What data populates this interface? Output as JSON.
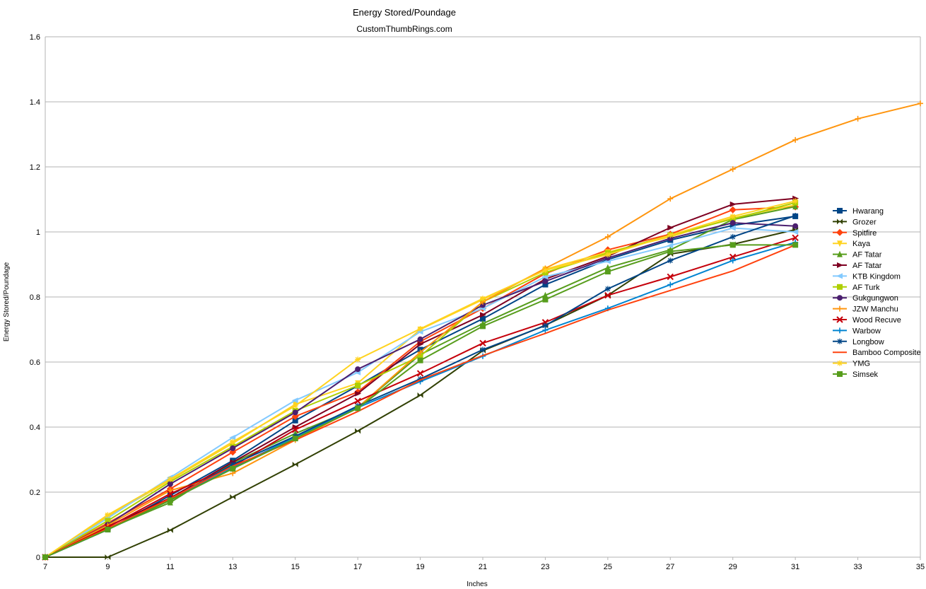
{
  "chart_data": {
    "type": "line",
    "title": "Energy Stored/Poundage",
    "subtitle": "CustomThumbRings.com",
    "xlabel": "Inches",
    "ylabel": "Energy Stored/Poundage",
    "x_ticks": [
      7,
      9,
      11,
      13,
      15,
      17,
      19,
      21,
      23,
      25,
      27,
      29,
      31,
      33,
      35
    ],
    "y_ticks": [
      "0",
      "0.2",
      "0.4",
      "0.6",
      "0.8",
      "1",
      "1.2",
      "1.4",
      "1.6"
    ],
    "xlim": [
      7,
      35
    ],
    "ylim": [
      0,
      1.6
    ],
    "grid": "horizontal",
    "legend_position": "right",
    "series": [
      {
        "name": "Hwarang",
        "color": "#004586",
        "marker": "square",
        "x": [
          7,
          9,
          11,
          13,
          15,
          17,
          19,
          21,
          23,
          25,
          27,
          29,
          31
        ],
        "y": [
          0,
          0.085,
          0.19,
          0.297,
          0.42,
          0.527,
          0.638,
          0.733,
          0.838,
          0.915,
          0.975,
          1.02,
          1.048
        ]
      },
      {
        "name": "Grozer",
        "color": "#314004",
        "marker": "bowtie",
        "x": [
          7,
          9,
          11,
          13,
          15,
          17,
          19,
          21,
          23,
          25,
          27,
          29,
          31
        ],
        "y": [
          0,
          0,
          0.083,
          0.185,
          0.285,
          0.388,
          0.498,
          0.635,
          0.713,
          0.805,
          0.932,
          0.962,
          1.007
        ]
      },
      {
        "name": "Spitfire",
        "color": "#ff420e",
        "marker": "diamond",
        "x": [
          7,
          9,
          11,
          13,
          15,
          17,
          19,
          21,
          23,
          25,
          27,
          29,
          31
        ],
        "y": [
          0,
          0.105,
          0.21,
          0.323,
          0.433,
          0.508,
          0.663,
          0.765,
          0.872,
          0.945,
          0.993,
          1.068,
          1.077
        ]
      },
      {
        "name": "Kaya",
        "color": "#ffd320",
        "marker": "triangle-down",
        "x": [
          7,
          9,
          11,
          13,
          15,
          17,
          19,
          21,
          23,
          25,
          27,
          29,
          31
        ],
        "y": [
          0,
          0.125,
          0.237,
          0.35,
          0.47,
          0.535,
          0.7,
          0.792,
          0.885,
          0.938,
          0.985,
          1.043,
          1.083
        ]
      },
      {
        "name": "AF Tatar",
        "color": "#579d1c",
        "marker": "triangle-up",
        "x": [
          7,
          9,
          11,
          13,
          15,
          17,
          19,
          21,
          23,
          25,
          27,
          29,
          31
        ],
        "y": [
          0,
          0.087,
          0.168,
          0.29,
          0.38,
          0.46,
          0.623,
          0.718,
          0.805,
          0.89,
          0.945,
          1.038,
          1.078
        ]
      },
      {
        "name": "AF Tatar",
        "color": "#7e0021",
        "marker": "triangle-right",
        "x": [
          7,
          9,
          11,
          13,
          15,
          17,
          19,
          21,
          23,
          25,
          27,
          29,
          31
        ],
        "y": [
          0,
          0.095,
          0.182,
          0.292,
          0.4,
          0.503,
          0.655,
          0.745,
          0.855,
          0.925,
          1.013,
          1.085,
          1.103
        ]
      },
      {
        "name": "KTB Kingdom",
        "color": "#83caff",
        "marker": "triangle-left",
        "x": [
          7,
          9,
          11,
          13,
          15,
          17,
          19,
          21,
          23,
          25,
          27,
          29,
          31
        ],
        "y": [
          0,
          0.12,
          0.245,
          0.368,
          0.482,
          0.568,
          0.693,
          0.765,
          0.862,
          0.91,
          0.958,
          1.012,
          1.0
        ]
      },
      {
        "name": "AF Turk",
        "color": "#aecf00",
        "marker": "square",
        "x": [
          7,
          9,
          11,
          13,
          15,
          17,
          19,
          21,
          23,
          25,
          27,
          29,
          31
        ],
        "y": [
          0,
          0.112,
          0.232,
          0.34,
          0.45,
          0.528,
          0.618,
          0.785,
          0.875,
          0.935,
          0.99,
          1.04,
          1.09
        ]
      },
      {
        "name": "Gukgungwon",
        "color": "#4b1f6f",
        "marker": "circle",
        "x": [
          7,
          9,
          11,
          13,
          15,
          17,
          19,
          21,
          23,
          25,
          27,
          29,
          31
        ],
        "y": [
          0,
          0.1,
          0.225,
          0.335,
          0.445,
          0.578,
          0.67,
          0.775,
          0.848,
          0.92,
          0.98,
          1.028,
          1.018
        ]
      },
      {
        "name": "JZW Manchu",
        "color": "#ff950e",
        "marker": "plus",
        "x": [
          7,
          9,
          11,
          13,
          15,
          17,
          19,
          21,
          23,
          25,
          27,
          29,
          31,
          33,
          35
        ],
        "y": [
          0,
          0.098,
          0.205,
          0.258,
          0.36,
          0.46,
          0.63,
          0.785,
          0.888,
          0.985,
          1.102,
          1.193,
          1.283,
          1.348,
          1.395
        ]
      },
      {
        "name": "Wood Recuve",
        "color": "#c5000b",
        "marker": "x",
        "x": [
          7,
          9,
          11,
          13,
          15,
          17,
          19,
          21,
          23,
          25,
          27,
          29,
          31
        ],
        "y": [
          0,
          0.092,
          0.195,
          0.28,
          0.392,
          0.48,
          0.565,
          0.658,
          0.722,
          0.805,
          0.862,
          0.923,
          0.982
        ]
      },
      {
        "name": "Warbow",
        "color": "#0084d1",
        "marker": "plus",
        "x": [
          7,
          9,
          11,
          13,
          15,
          17,
          19,
          21,
          23,
          25,
          27,
          29,
          31
        ],
        "y": [
          0,
          0.085,
          0.175,
          0.275,
          0.37,
          0.46,
          0.54,
          0.618,
          0.698,
          0.765,
          0.838,
          0.912,
          0.968
        ]
      },
      {
        "name": "Longbow",
        "color": "#004586",
        "marker": "star",
        "x": [
          7,
          9,
          11,
          13,
          15,
          17,
          19,
          21,
          23,
          25,
          27,
          29,
          31
        ],
        "y": [
          0,
          0.085,
          0.178,
          0.285,
          0.372,
          0.465,
          0.548,
          0.638,
          0.712,
          0.825,
          0.912,
          0.985,
          1.05
        ]
      },
      {
        "name": "Bamboo Composite",
        "color": "#ff420e",
        "marker": "none",
        "x": [
          7,
          9,
          11,
          13,
          15,
          17,
          19,
          21,
          23,
          25,
          27,
          29,
          31
        ],
        "y": [
          0,
          0.088,
          0.18,
          0.28,
          0.36,
          0.448,
          0.545,
          0.62,
          0.688,
          0.76,
          0.82,
          0.88,
          0.96
        ]
      },
      {
        "name": "YMG",
        "color": "#ffd320",
        "marker": "star",
        "x": [
          7,
          9,
          11,
          13,
          15,
          17,
          19,
          21,
          23,
          25,
          27,
          29,
          31
        ],
        "y": [
          0,
          0.13,
          0.24,
          0.355,
          0.465,
          0.608,
          0.702,
          0.795,
          0.882,
          0.93,
          0.99,
          1.048,
          1.095
        ]
      },
      {
        "name": "Simsek",
        "color": "#579d1c",
        "marker": "square",
        "x": [
          7,
          9,
          11,
          13,
          15,
          17,
          19,
          21,
          23,
          25,
          27,
          29,
          31
        ],
        "y": [
          0,
          0.085,
          0.175,
          0.272,
          0.365,
          0.458,
          0.605,
          0.71,
          0.792,
          0.878,
          0.94,
          0.96,
          0.96
        ]
      }
    ]
  }
}
